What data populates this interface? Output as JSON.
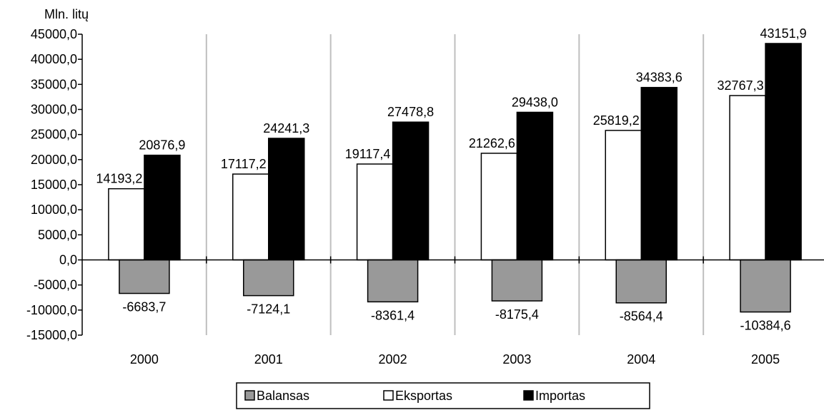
{
  "chart_data": {
    "type": "bar",
    "ylabel": "Mln. litų",
    "ylim": [
      -15000,
      45000
    ],
    "yticks": [
      45000,
      40000,
      35000,
      30000,
      25000,
      20000,
      15000,
      10000,
      5000,
      0,
      -5000,
      -10000,
      -15000
    ],
    "ytick_labels": [
      "45000,0",
      "40000,0",
      "35000,0",
      "30000,0",
      "25000,0",
      "20000,0",
      "15000,0",
      "10000,0",
      "5000,0",
      "0,0",
      "-5000,0",
      "-10000,0",
      "-15000,0"
    ],
    "categories": [
      "2000",
      "2001",
      "2002",
      "2003",
      "2004",
      "2005"
    ],
    "grid": "vertical between categories",
    "legend_position": "bottom",
    "series": [
      {
        "name": "Eksportas",
        "color": "#ffffff",
        "values": [
          14193.2,
          17117.2,
          19117.4,
          21262.6,
          25819.2,
          32767.3
        ],
        "labels": [
          "14193,2",
          "17117,2",
          "19117,4",
          "21262,6",
          "25819,2",
          "32767,3"
        ]
      },
      {
        "name": "Importas",
        "color": "#000000",
        "values": [
          20876.9,
          24241.3,
          27478.8,
          29438.0,
          34383.6,
          43151.9
        ],
        "labels": [
          "20876,9",
          "24241,3",
          "27478,8",
          "29438,0",
          "34383,6",
          "43151,9"
        ]
      },
      {
        "name": "Balansas",
        "color": "#999999",
        "values": [
          -6683.7,
          -7124.1,
          -8361.4,
          -8175.4,
          -8564.4,
          -10384.6
        ],
        "labels": [
          "-6683,7",
          "-7124,1",
          "-8361,4",
          "-8175,4",
          "-8564,4",
          "-10384,6"
        ]
      }
    ],
    "legend_order": [
      "Balansas",
      "Eksportas",
      "Importas"
    ]
  }
}
